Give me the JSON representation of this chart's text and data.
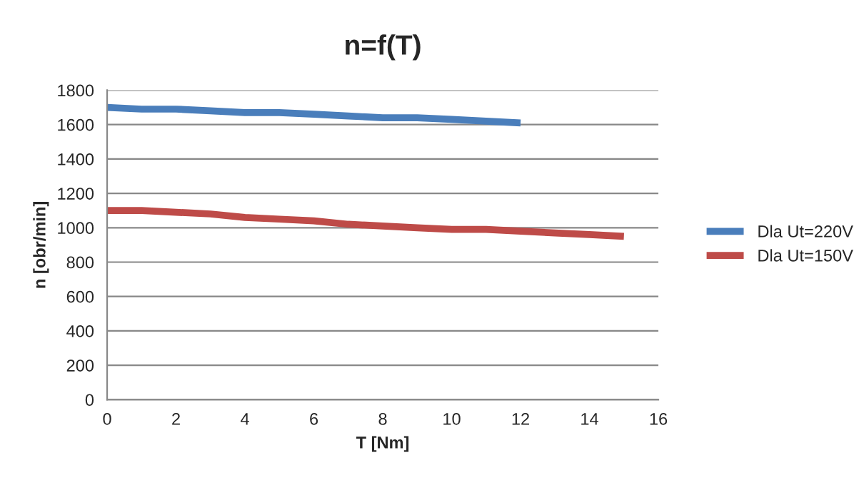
{
  "chart_data": {
    "type": "line",
    "title": "n=f(T)",
    "xlabel": "T [Nm]",
    "ylabel": "n [obr/min]",
    "xlim": [
      0,
      16
    ],
    "xticks": [
      0,
      2,
      4,
      6,
      8,
      10,
      12,
      14,
      16
    ],
    "ylim": [
      0,
      1800
    ],
    "yticks": [
      0,
      200,
      400,
      600,
      800,
      1000,
      1200,
      1400,
      1600,
      1800
    ],
    "grid": "y",
    "legend": "right",
    "marker": "none",
    "line_style": "solid",
    "series": [
      {
        "name": "Dla Ut=220V",
        "color": "#4a7ebb",
        "x": [
          0,
          1,
          2,
          3,
          4,
          5,
          6,
          7,
          8,
          9,
          10,
          11,
          12
        ],
        "values": [
          1700,
          1690,
          1690,
          1680,
          1670,
          1670,
          1660,
          1650,
          1640,
          1640,
          1630,
          1620,
          1610
        ]
      },
      {
        "name": "Dla Ut=150V",
        "color": "#be4b48",
        "x": [
          0,
          1,
          2,
          3,
          4,
          5,
          6,
          7,
          8,
          9,
          10,
          11,
          12,
          13,
          14,
          15
        ],
        "values": [
          1100,
          1100,
          1090,
          1080,
          1060,
          1050,
          1040,
          1020,
          1010,
          1000,
          990,
          990,
          980,
          970,
          960,
          950
        ]
      }
    ]
  }
}
